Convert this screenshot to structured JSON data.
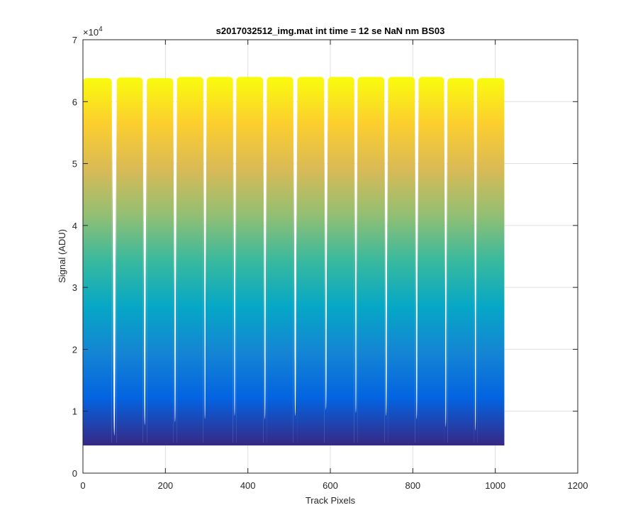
{
  "chart_data": {
    "type": "area",
    "title": "s2017032512_img.mat int time = 12 se  NaN nm BS03",
    "xlabel": "Track Pixels",
    "ylabel": "Signal (ADU)",
    "xlim": [
      0,
      1200
    ],
    "ylim": [
      0,
      70000
    ],
    "y_exponent_label": "×10",
    "y_exponent_power": "4",
    "xticks": [
      0,
      200,
      400,
      600,
      800,
      1000,
      1200
    ],
    "xtick_labels": [
      "0",
      "200",
      "400",
      "600",
      "800",
      "1000",
      "1200"
    ],
    "yticks": [
      0,
      10000,
      20000,
      30000,
      40000,
      50000,
      60000,
      70000
    ],
    "ytick_labels": [
      "0",
      "1",
      "2",
      "3",
      "4",
      "5",
      "6",
      "7"
    ],
    "grid": true,
    "baseline": 4700,
    "colormap": [
      "#352a87",
      "#0363e1",
      "#1485d4",
      "#06a7c6",
      "#38b99e",
      "#92bf73",
      "#d9ba56",
      "#fcce2e",
      "#f9fb0e"
    ],
    "segments": [
      {
        "x_start": 0,
        "x_end": 70,
        "top": 63800,
        "gap_min": 5800
      },
      {
        "x_start": 82,
        "x_end": 145,
        "top": 63900,
        "gap_min": 7500
      },
      {
        "x_start": 155,
        "x_end": 219,
        "top": 63800,
        "gap_min": 8000
      },
      {
        "x_start": 228,
        "x_end": 292,
        "top": 64000,
        "gap_min": 8500
      },
      {
        "x_start": 300,
        "x_end": 364,
        "top": 64000,
        "gap_min": 9000
      },
      {
        "x_start": 372,
        "x_end": 437,
        "top": 64000,
        "gap_min": 8500
      },
      {
        "x_start": 446,
        "x_end": 510,
        "top": 64000,
        "gap_min": 9000
      },
      {
        "x_start": 520,
        "x_end": 585,
        "top": 64000,
        "gap_min": 10000
      },
      {
        "x_start": 594,
        "x_end": 658,
        "top": 64000,
        "gap_min": 9500
      },
      {
        "x_start": 666,
        "x_end": 731,
        "top": 64000,
        "gap_min": 9000
      },
      {
        "x_start": 740,
        "x_end": 805,
        "top": 64000,
        "gap_min": 8500
      },
      {
        "x_start": 814,
        "x_end": 876,
        "top": 64000,
        "gap_min": 7200
      },
      {
        "x_start": 884,
        "x_end": 948,
        "top": 63800,
        "gap_min": 6600
      },
      {
        "x_start": 956,
        "x_end": 1022,
        "top": 63800,
        "gap_min": null
      }
    ]
  }
}
